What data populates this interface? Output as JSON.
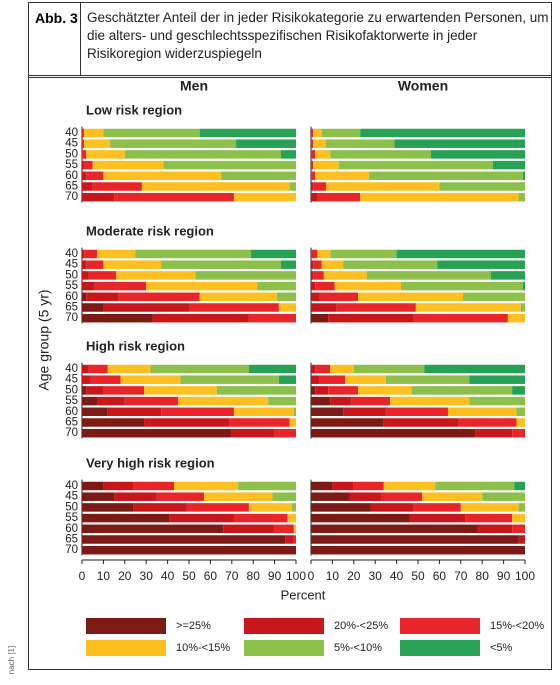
{
  "figure_label": "Abb. 3",
  "caption": "Geschätzter Anteil der in jeder Risikokategorie zu erwartenden Personen, um die alters- und geschlechtsspezifischen Risikofaktorwerte in jeder Risikoregion widerzuspiegeln",
  "source": "nach [1]",
  "chart_data": {
    "type": "stacked-bar-h",
    "ylabel": "Age group (5 yr)",
    "xlabel": "Percent",
    "columns": [
      "Men",
      "Women"
    ],
    "categories": [
      "40",
      "45",
      "50",
      "55",
      "60",
      "65",
      "70"
    ],
    "xlim": [
      0,
      100
    ],
    "xticks": [
      0,
      10,
      20,
      30,
      40,
      50,
      60,
      70,
      80,
      90,
      100
    ],
    "series": [
      {
        "name": ">=25%",
        "color": "#7c1a16"
      },
      {
        "name": "20%-<25%",
        "color": "#c8161d"
      },
      {
        "name": "15%-<20%",
        "color": "#e8262a"
      },
      {
        "name": "10%-<15%",
        "color": "#fdc020"
      },
      {
        "name": "5%-<10%",
        "color": "#8cc04b"
      },
      {
        "name": "<5%",
        "color": "#27a153"
      }
    ],
    "regions": [
      {
        "title": "Low risk region",
        "panels": [
          {
            "values": [
              [
                0,
                0,
                1,
                9,
                45,
                45
              ],
              [
                0,
                0,
                1,
                12,
                59,
                28
              ],
              [
                0,
                0,
                2,
                18,
                73,
                7
              ],
              [
                0,
                1,
                4,
                33,
                62,
                0
              ],
              [
                0,
                2,
                8,
                55,
                35,
                0
              ],
              [
                0,
                5,
                23,
                69,
                3,
                0
              ],
              [
                0,
                15,
                56,
                29,
                0,
                0
              ]
            ]
          },
          {
            "values": [
              [
                0,
                0,
                1,
                4,
                18,
                77
              ],
              [
                0,
                0,
                1,
                6,
                32,
                61
              ],
              [
                0,
                0,
                2,
                7,
                47,
                44
              ],
              [
                0,
                0,
                1,
                12,
                72,
                15
              ],
              [
                0,
                0,
                2,
                25,
                72,
                1
              ],
              [
                0,
                1,
                6,
                53,
                40,
                0
              ],
              [
                0,
                3,
                20,
                74,
                3,
                0
              ]
            ]
          }
        ]
      },
      {
        "title": "Moderate risk region",
        "panels": [
          {
            "values": [
              [
                0,
                1,
                6,
                18,
                54,
                21
              ],
              [
                0,
                2,
                8,
                27,
                56,
                7
              ],
              [
                0,
                3,
                13,
                37,
                47,
                0
              ],
              [
                0,
                6,
                24,
                52,
                18,
                0
              ],
              [
                2,
                15,
                38,
                36,
                9,
                0
              ],
              [
                10,
                40,
                42,
                8,
                0,
                0
              ],
              [
                33,
                45,
                22,
                0,
                0,
                0
              ]
            ]
          },
          {
            "values": [
              [
                0,
                0,
                3,
                6,
                31,
                60
              ],
              [
                0,
                1,
                4,
                10,
                44,
                41
              ],
              [
                0,
                1,
                5,
                20,
                58,
                16
              ],
              [
                0,
                2,
                9,
                31,
                57,
                1
              ],
              [
                0,
                4,
                18,
                49,
                29,
                0
              ],
              [
                0,
                12,
                37,
                49,
                2,
                0
              ],
              [
                8,
                40,
                44,
                8,
                0,
                0
              ]
            ]
          }
        ]
      },
      {
        "title": "High risk region",
        "panels": [
          {
            "values": [
              [
                0,
                3,
                9,
                20,
                46,
                22
              ],
              [
                0,
                4,
                14,
                28,
                46,
                8
              ],
              [
                2,
                8,
                19,
                34,
                37,
                0
              ],
              [
                7,
                13,
                25,
                42,
                13,
                0
              ],
              [
                12,
                25,
                34,
                28,
                1,
                0
              ],
              [
                29,
                40,
                28,
                3,
                0,
                0
              ],
              [
                70,
                20,
                10,
                0,
                0,
                0
              ]
            ]
          },
          {
            "values": [
              [
                0,
                2,
                7,
                11,
                33,
                47
              ],
              [
                0,
                4,
                12,
                19,
                39,
                26
              ],
              [
                2,
                6,
                14,
                25,
                47,
                6
              ],
              [
                9,
                10,
                18,
                37,
                26,
                0
              ],
              [
                15,
                20,
                29,
                32,
                4,
                0
              ],
              [
                34,
                35,
                27,
                4,
                0,
                0
              ],
              [
                77,
                17,
                6,
                0,
                0,
                0
              ]
            ]
          }
        ]
      },
      {
        "title": "Very high risk region",
        "panels": [
          {
            "values": [
              [
                10,
                14,
                19,
                30,
                27,
                0
              ],
              [
                15,
                20,
                22,
                32,
                11,
                0
              ],
              [
                24,
                25,
                29,
                20,
                2,
                0
              ],
              [
                41,
                30,
                25,
                4,
                0,
                0
              ],
              [
                66,
                24,
                9,
                1,
                0,
                0
              ],
              [
                95,
                4,
                1,
                0,
                0,
                0
              ],
              [
                100,
                0,
                0,
                0,
                0,
                0
              ]
            ]
          },
          {
            "values": [
              [
                10,
                10,
                14,
                24,
                37,
                5
              ],
              [
                18,
                15,
                19,
                28,
                20,
                0
              ],
              [
                28,
                20,
                22,
                27,
                3,
                0
              ],
              [
                46,
                26,
                22,
                6,
                0,
                0
              ],
              [
                78,
                16,
                6,
                0,
                0,
                0
              ],
              [
                97,
                3,
                0,
                0,
                0,
                0
              ],
              [
                100,
                0,
                0,
                0,
                0,
                0
              ]
            ]
          }
        ]
      }
    ]
  }
}
